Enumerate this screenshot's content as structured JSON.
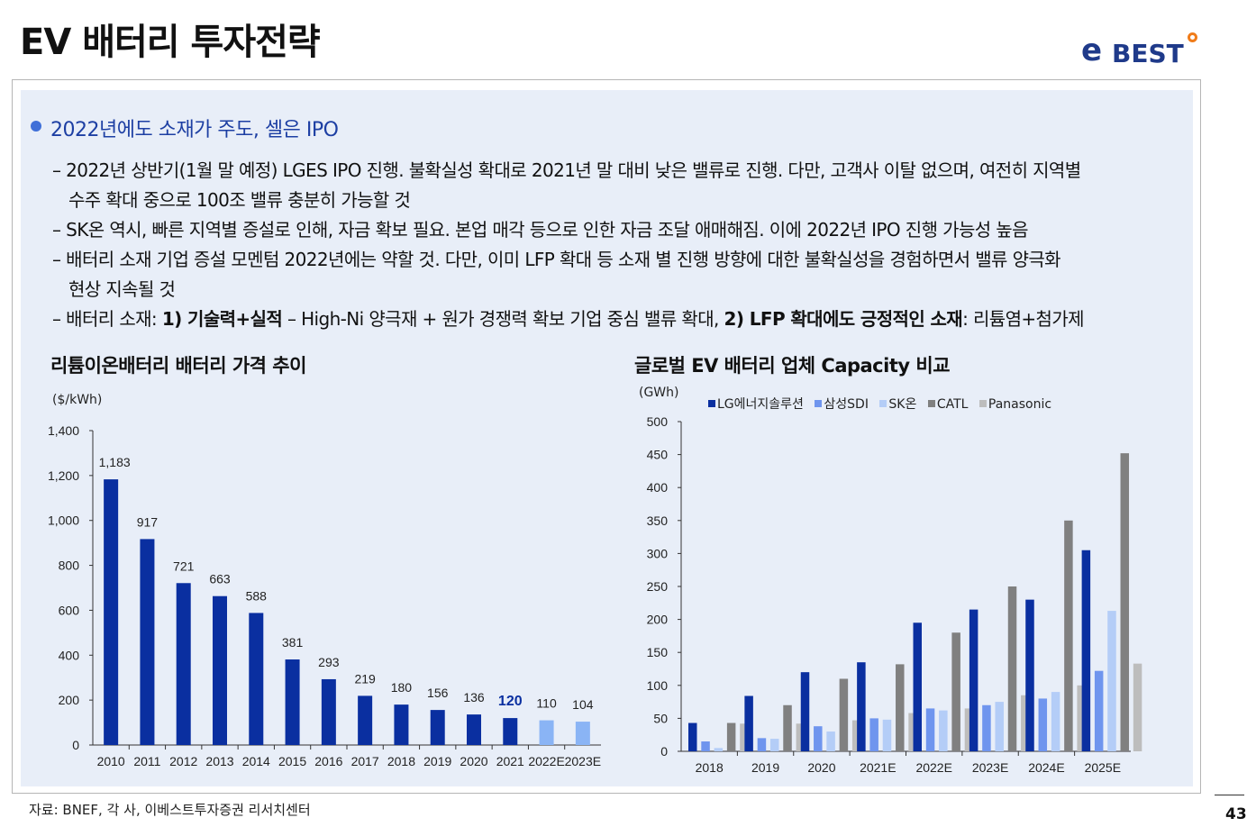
{
  "title": "EV 배터리 투자전략",
  "logo": {
    "text": "BEST",
    "prefix": "e"
  },
  "heading": "2022년에도 소재가 주도, 셀은 IPO",
  "bullets": {
    "b1_line1": "– 2022년 상반기(1월 말 예정) LGES IPO 진행. 불확실성 확대로 2021년 말 대비 낮은 밸류로 진행. 다만, 고객사 이탈 없으며, 여전히 지역별",
    "b1_line2": "수주 확대 중으로 100조 밸류 충분히 가능할 것",
    "b2": "– SK온 역시, 빠른 지역별 증설로 인해, 자금 확보 필요. 본업 매각 등으로 인한 자금 조달 애매해짐. 이에 2022년 IPO 진행 가능성 높음",
    "b3_line1": "– 배터리 소재 기업 증설 모멘텀 2022년에는 약할 것. 다만, 이미 LFP 확대 등 소재 별 진행 방향에 대한 불확실성을 경험하면서 밸류 양극화",
    "b3_line2": "현상 지속될 것",
    "b4_pre": "– 배터리 소재: ",
    "b4_bold1": "1) 기술력+실적",
    "b4_mid": " – High-Ni 양극재 + 원가 경쟁력 확보 기업 중심 밸류 확대, ",
    "b4_bold2": "2) LFP 확대에도 긍정적인 소재",
    "b4_post": ": 리튬염+첨가제"
  },
  "chart_data": [
    {
      "type": "bar",
      "title": "리튬이온배터리 배터리 가격 추이",
      "unit": "($/kWh)",
      "categories": [
        "2010",
        "2011",
        "2012",
        "2013",
        "2014",
        "2015",
        "2016",
        "2017",
        "2018",
        "2019",
        "2020",
        "2021",
        "2022E",
        "2023E"
      ],
      "values": [
        1183,
        917,
        721,
        663,
        588,
        381,
        293,
        219,
        180,
        156,
        136,
        120,
        110,
        104
      ],
      "value_labels": [
        "1,183",
        "917",
        "721",
        "663",
        "588",
        "381",
        "293",
        "219",
        "180",
        "156",
        "136",
        "120",
        "110",
        "104"
      ],
      "highlight_index": 11,
      "ylim": [
        0,
        1400
      ],
      "yticks": [
        "0",
        "200",
        "400",
        "600",
        "800",
        "1,000",
        "1,200",
        "1,400"
      ],
      "colors": {
        "actual": "#0a2fa0",
        "estimate": "#8ab4f5",
        "highlight_label": "#0a2fa0"
      }
    },
    {
      "type": "bar",
      "title": "글로벌 EV 배터리 업체 Capacity 비교",
      "unit": "(GWh)",
      "categories": [
        "2018",
        "2019",
        "2020",
        "2021E",
        "2022E",
        "2023E",
        "2024E",
        "2025E"
      ],
      "series": [
        {
          "name": "LG에너지솔루션",
          "color": "#0a2fa0",
          "values": [
            43,
            84,
            120,
            135,
            195,
            215,
            230,
            305
          ]
        },
        {
          "name": "삼성SDI",
          "color": "#6f95ee",
          "values": [
            15,
            20,
            38,
            50,
            65,
            70,
            80,
            122
          ]
        },
        {
          "name": "SK온",
          "color": "#b4cdf7",
          "values": [
            5,
            19,
            30,
            48,
            62,
            75,
            90,
            213
          ]
        },
        {
          "name": "CATL",
          "color": "#808080",
          "values": [
            43,
            70,
            110,
            132,
            180,
            250,
            350,
            452
          ]
        },
        {
          "name": "Panasonic",
          "color": "#bdbdbd",
          "values": [
            42,
            42,
            47,
            58,
            65,
            85,
            100,
            133
          ]
        }
      ],
      "ylim": [
        0,
        500
      ],
      "yticks": [
        "0",
        "50",
        "100",
        "150",
        "200",
        "250",
        "300",
        "350",
        "400",
        "450",
        "500"
      ]
    }
  ],
  "source": "자료: BNEF, 각 사, 이베스트투자증권 리서치센터",
  "page_number": "43"
}
